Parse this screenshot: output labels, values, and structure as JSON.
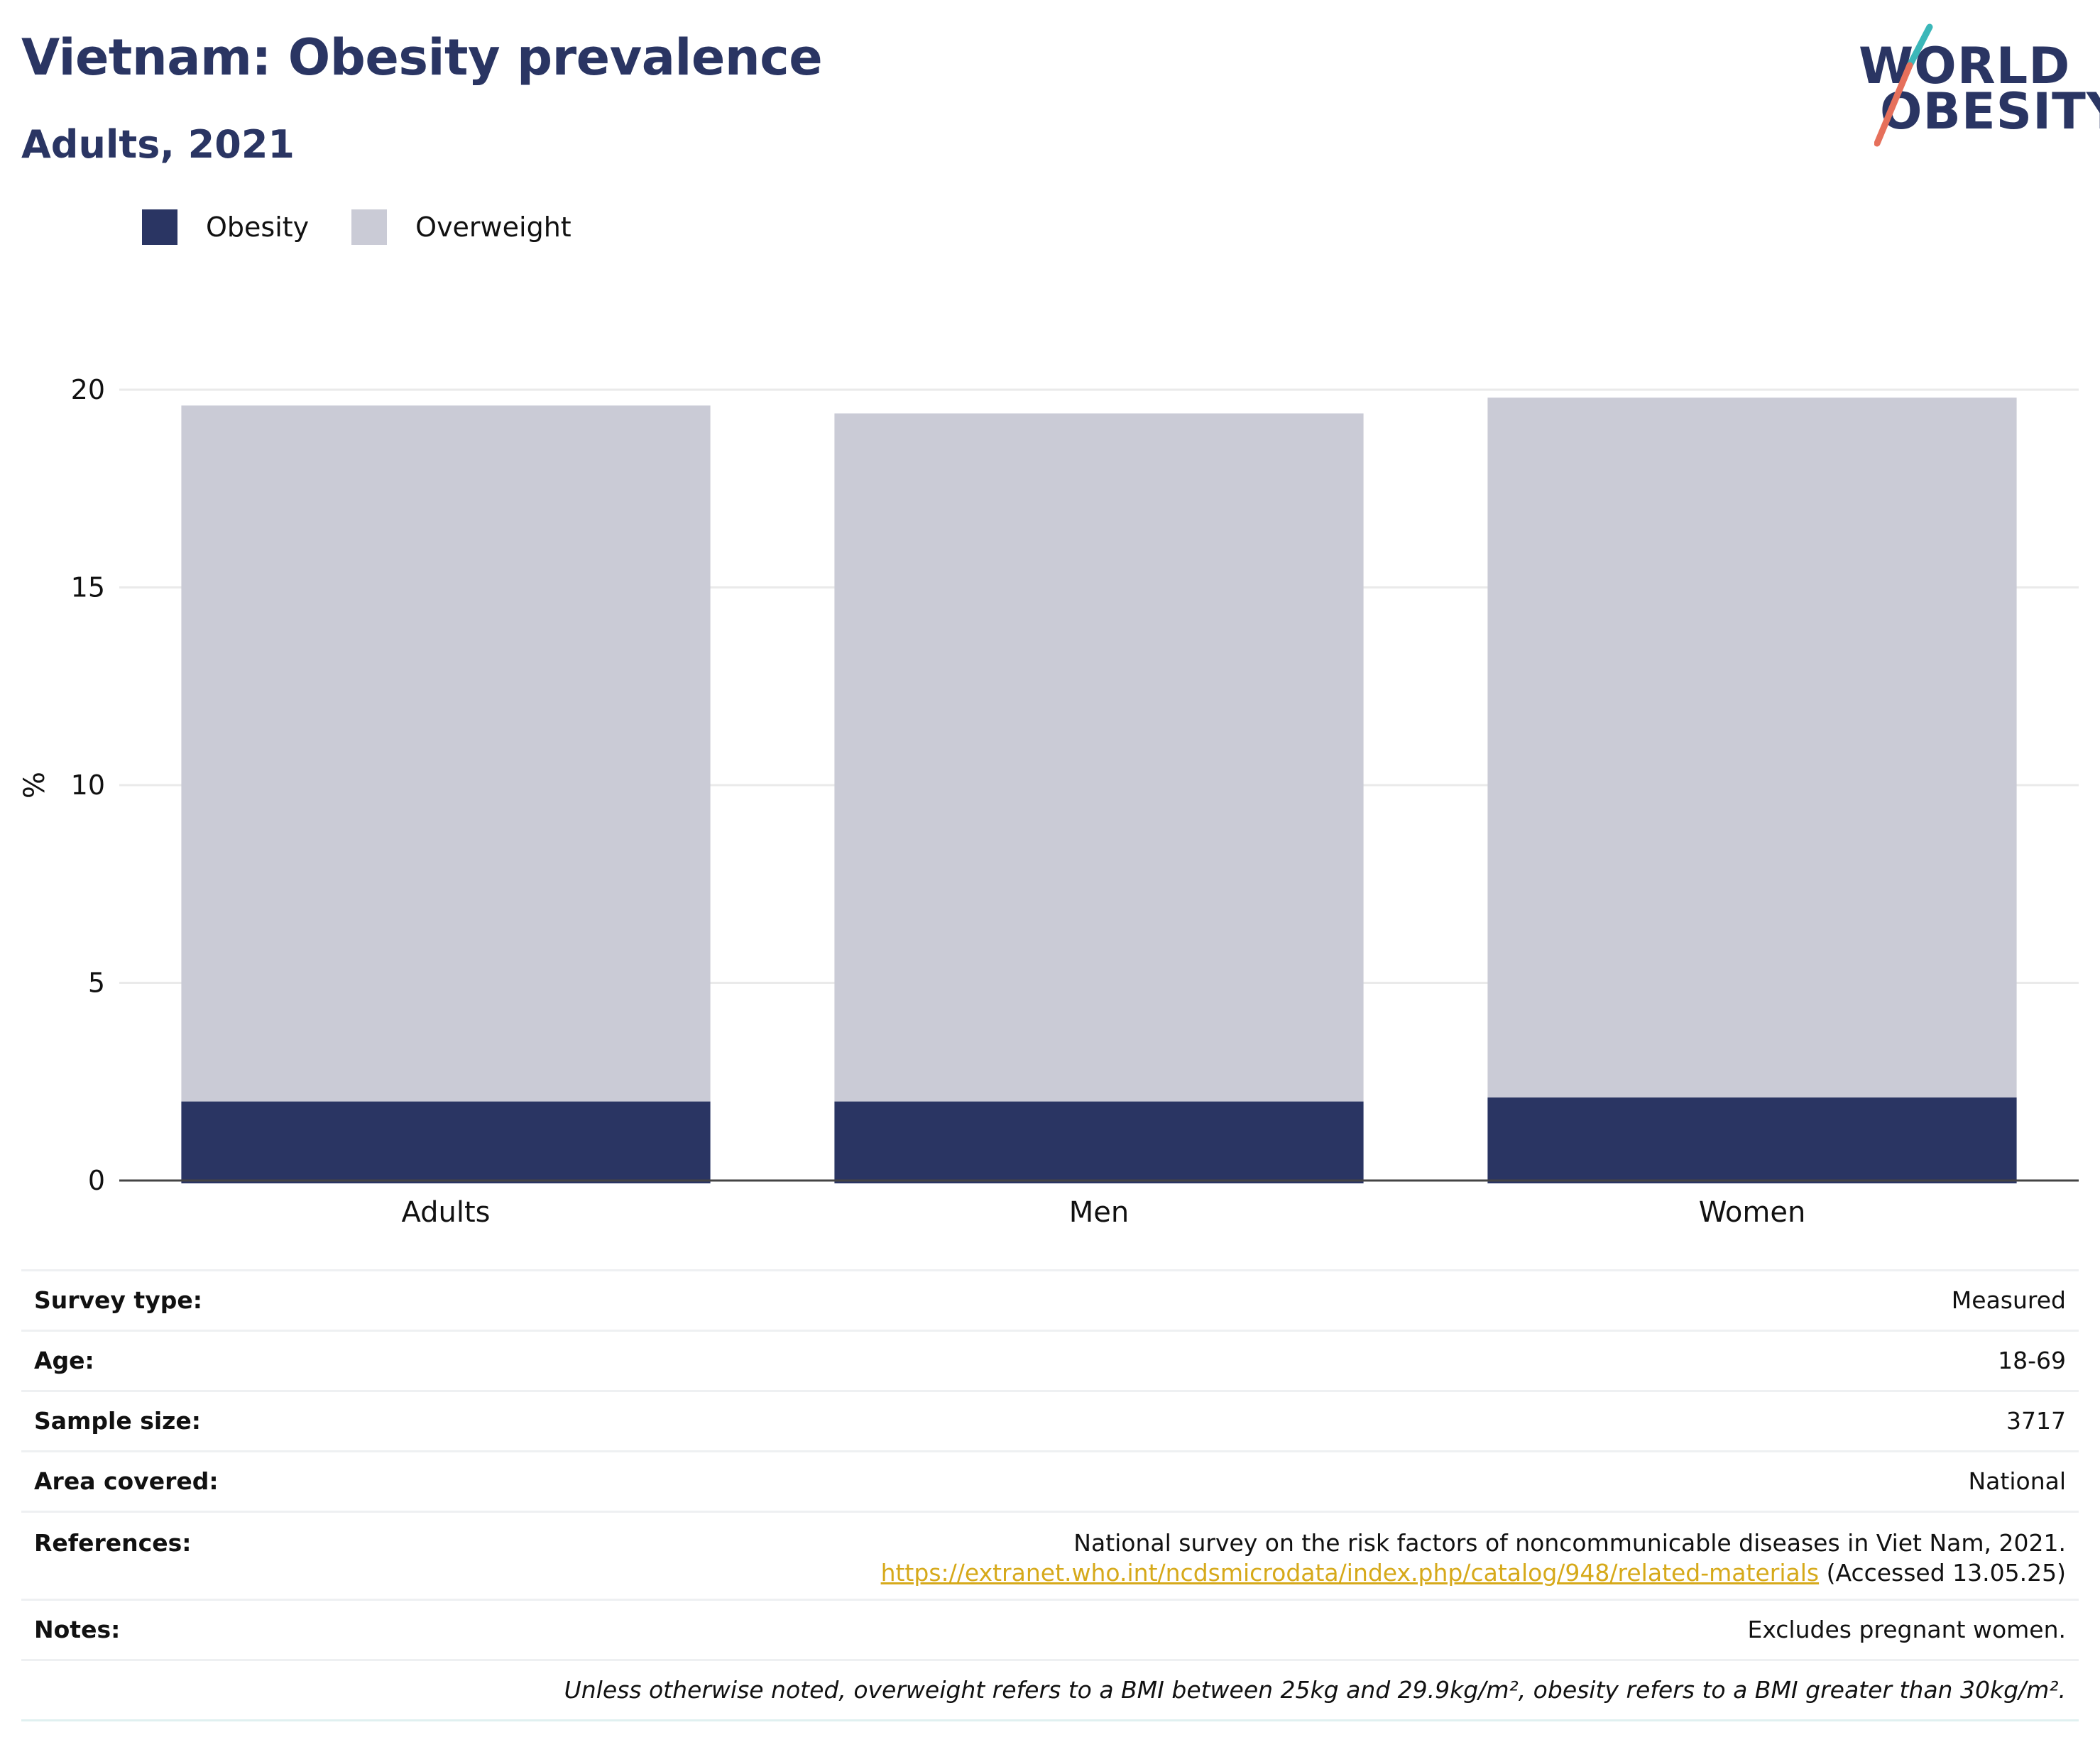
{
  "header": {
    "title": "Vietnam: Obesity prevalence",
    "subtitle": "Adults, 2021"
  },
  "logo": {
    "line1": "WORLD",
    "line2": "OBESITY"
  },
  "legend": [
    {
      "label": "Obesity",
      "color": "#2a3563"
    },
    {
      "label": "Overweight",
      "color": "#cacbd6"
    }
  ],
  "chart_data": {
    "type": "bar",
    "stacked": true,
    "categories": [
      "Adults",
      "Men",
      "Women"
    ],
    "series": [
      {
        "name": "Obesity",
        "color": "#2a3563",
        "values": [
          2.0,
          2.0,
          2.1
        ]
      },
      {
        "name": "Overweight",
        "color": "#cacbd6",
        "values": [
          17.6,
          17.4,
          17.7
        ]
      }
    ],
    "ylabel": "%",
    "ylim": [
      0,
      21
    ],
    "yticks": [
      0,
      5,
      10,
      15,
      20
    ],
    "grid": true,
    "legend_position": "top-left"
  },
  "info": {
    "survey_type": {
      "label": "Survey type:",
      "value": "Measured"
    },
    "age": {
      "label": "Age:",
      "value": "18-69"
    },
    "sample_size": {
      "label": "Sample size:",
      "value": "3717"
    },
    "area": {
      "label": "Area covered:",
      "value": "National"
    },
    "references": {
      "label": "References:",
      "text": "National survey on the risk factors of noncommunicable diseases in Viet Nam, 2021.",
      "link": "https://extranet.who.int/ncdsmicrodata/index.php/catalog/948/related-materials",
      "accessed": " (Accessed 13.05.25)"
    },
    "notes": {
      "label": "Notes:",
      "value": "Excludes pregnant women."
    },
    "footnote": "Unless otherwise noted, overweight refers to a BMI between 25kg and 29.9kg/m², obesity refers to a BMI greater than 30kg/m²."
  }
}
